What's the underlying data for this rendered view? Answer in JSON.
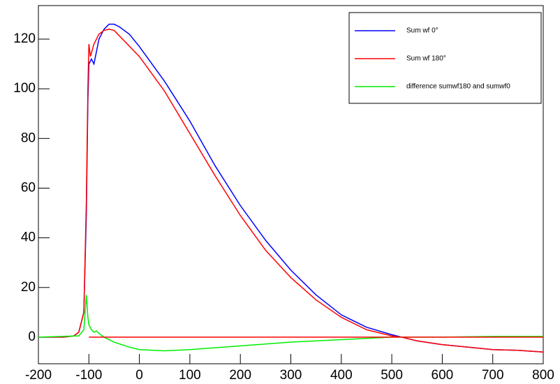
{
  "chart_data": {
    "type": "line",
    "xlim": [
      -200,
      800
    ],
    "ylim": [
      -10.7,
      133.5
    ],
    "xticks": [
      -200,
      -100,
      0,
      100,
      200,
      300,
      400,
      500,
      600,
      700,
      800
    ],
    "yticks": [
      0,
      20,
      40,
      60,
      80,
      100,
      120
    ],
    "legend": "top-right",
    "series": [
      {
        "name": "Sum wf 0°",
        "color": "#0000ff",
        "x": [
          -200,
          -150,
          -130,
          -120,
          -110,
          -105,
          -102,
          -100,
          -95,
          -90,
          -85,
          -80,
          -70,
          -60,
          -50,
          -40,
          -20,
          0,
          50,
          100,
          150,
          200,
          250,
          300,
          350,
          400,
          450,
          500,
          520,
          550,
          600,
          650,
          700,
          750,
          800
        ],
        "values": [
          0,
          0,
          0.5,
          2,
          10,
          50,
          95,
          110,
          112,
          110,
          115,
          120,
          124,
          126,
          126,
          125,
          122,
          117,
          103,
          87,
          69,
          53,
          39,
          27,
          17,
          9,
          4,
          1,
          0,
          -1.5,
          -3,
          -4,
          -5,
          -5.3,
          -6
        ]
      },
      {
        "name": "Sum wf 180°",
        "color": "#ff0000",
        "x": [
          -200,
          -150,
          -130,
          -120,
          -110,
          -105,
          -102,
          -100,
          -97,
          -90,
          -80,
          -70,
          -60,
          -50,
          0,
          50,
          100,
          150,
          200,
          250,
          300,
          350,
          400,
          450,
          500,
          520,
          550,
          600,
          650,
          700,
          750,
          800
        ],
        "values": [
          0,
          0,
          0.5,
          2,
          10,
          55,
          100,
          118,
          113,
          118,
          122,
          123.5,
          124,
          123.5,
          113,
          99,
          82,
          65,
          49,
          35,
          24,
          15,
          8,
          3,
          0.5,
          0,
          -1.5,
          -3,
          -4,
          -5,
          -5.3,
          -6
        ]
      },
      {
        "name": "difference sumwf180 and sumwf0",
        "color": "#00ee00",
        "x": [
          -200,
          -120,
          -110,
          -105,
          -102,
          -100,
          -95,
          -90,
          -85,
          -80,
          -70,
          -50,
          -20,
          0,
          50,
          100,
          200,
          300,
          400,
          500,
          600,
          700,
          800
        ],
        "values": [
          0,
          0.5,
          3,
          17,
          8,
          5,
          3,
          2,
          2.5,
          1.5,
          0,
          -2,
          -4,
          -5,
          -5.5,
          -5,
          -3.5,
          -2,
          -1,
          0,
          0,
          0.3,
          0.3
        ]
      },
      {
        "color": "#ff0000",
        "x": [
          -100,
          800
        ],
        "values": [
          0,
          0
        ]
      }
    ]
  }
}
